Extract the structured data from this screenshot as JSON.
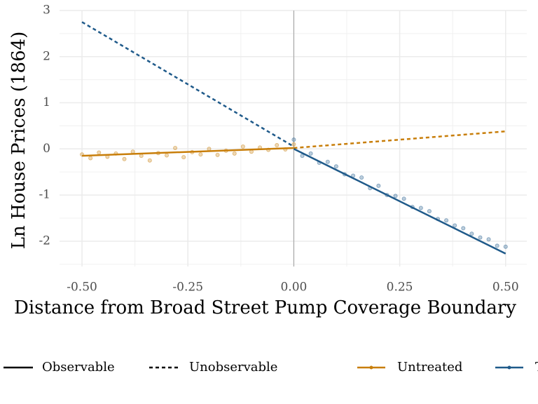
{
  "chart_data": {
    "type": "scatter",
    "xlabel": "Distance from Broad Street Pump Coverage Boundary",
    "ylabel": "Ln House Prices (1864)",
    "xlim": [
      -0.553,
      0.55
    ],
    "ylim": [
      -2.55,
      3.0
    ],
    "xticks": [
      {
        "value": -0.5,
        "label": "-0.50"
      },
      {
        "value": -0.25,
        "label": "-0.25"
      },
      {
        "value": 0,
        "label": "0.00"
      },
      {
        "value": 0.25,
        "label": "0.25"
      },
      {
        "value": 0.5,
        "label": "0.50"
      }
    ],
    "yticks": [
      -2,
      -1,
      0,
      1,
      2,
      3
    ],
    "grid": true,
    "cutoff": 0,
    "linetypes": [
      "Observable",
      "Unobservable"
    ],
    "series": [
      {
        "name": "Untreated",
        "color": "#c87e0a",
        "x": [
          -0.5,
          -0.48,
          -0.46,
          -0.44,
          -0.42,
          -0.4,
          -0.38,
          -0.36,
          -0.34,
          -0.32,
          -0.3,
          -0.28,
          -0.26,
          -0.24,
          -0.22,
          -0.2,
          -0.18,
          -0.16,
          -0.14,
          -0.12,
          -0.1,
          -0.08,
          -0.06,
          -0.04,
          -0.02,
          0.0
        ],
        "values": [
          -0.12,
          -0.2,
          -0.08,
          -0.17,
          -0.1,
          -0.22,
          -0.06,
          -0.15,
          -0.25,
          -0.09,
          -0.14,
          0.02,
          -0.18,
          -0.07,
          -0.12,
          0.0,
          -0.13,
          -0.04,
          -0.1,
          0.05,
          -0.06,
          0.03,
          -0.02,
          0.08,
          -0.01,
          0.1
        ],
        "fits": {
          "observable": {
            "x": [
              -0.5,
              0
            ],
            "values": [
              -0.15,
              0.02
            ]
          },
          "unobservable": {
            "x": [
              0,
              0.5
            ],
            "values": [
              0.02,
              0.38
            ]
          }
        }
      },
      {
        "name": "Treated",
        "color": "#1f5a8a",
        "x": [
          0.0,
          0.02,
          0.04,
          0.06,
          0.08,
          0.1,
          0.12,
          0.14,
          0.16,
          0.18,
          0.2,
          0.22,
          0.24,
          0.26,
          0.28,
          0.3,
          0.32,
          0.34,
          0.36,
          0.38,
          0.4,
          0.42,
          0.44,
          0.46,
          0.48,
          0.5
        ],
        "values": [
          0.2,
          -0.15,
          -0.1,
          -0.3,
          -0.28,
          -0.38,
          -0.55,
          -0.58,
          -0.62,
          -0.85,
          -0.8,
          -1.0,
          -1.02,
          -1.08,
          -1.26,
          -1.28,
          -1.35,
          -1.52,
          -1.55,
          -1.66,
          -1.72,
          -1.84,
          -1.92,
          -1.96,
          -2.1,
          -2.12
        ],
        "fits": {
          "observable": {
            "x": [
              0,
              0.5
            ],
            "values": [
              0.0,
              -2.27
            ]
          },
          "unobservable": {
            "x": [
              -0.5,
              0
            ],
            "values": [
              2.75,
              0.05
            ]
          }
        }
      }
    ]
  }
}
